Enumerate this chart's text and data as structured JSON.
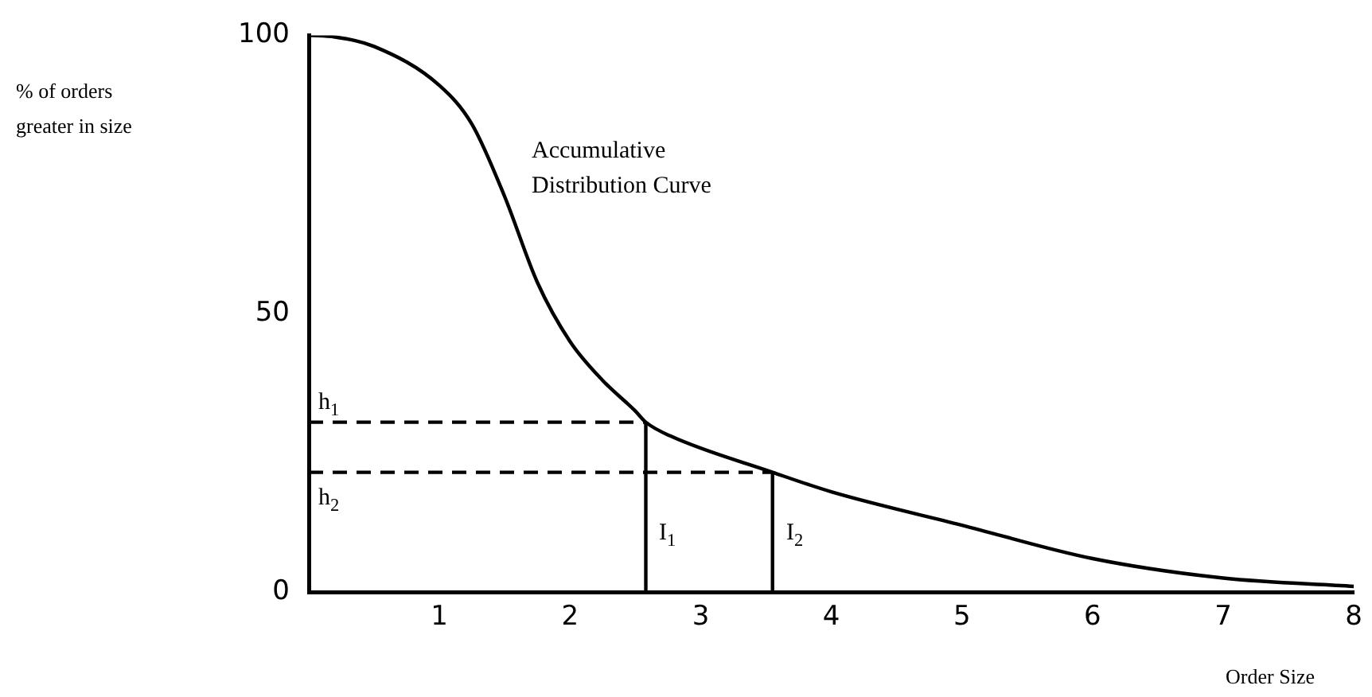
{
  "chart_data": {
    "type": "line",
    "xlabel": "Order Size",
    "xlim": [
      0,
      8
    ],
    "ylim": [
      0,
      100
    ],
    "xticks": [
      1,
      2,
      3,
      4,
      5,
      6,
      7,
      8
    ],
    "yticks": [
      0,
      50,
      100
    ],
    "grid": false,
    "legend": false,
    "marker": "none",
    "series": [
      {
        "color": "#000000",
        "x": [
          0,
          0.2,
          0.5,
          1,
          1.25,
          1.5,
          1.75,
          2,
          2.25,
          2.5,
          2.58,
          2.77,
          3.55,
          4,
          5,
          6,
          7,
          8
        ],
        "values": [
          100,
          99.7,
          98,
          91,
          84,
          71,
          55.6,
          45,
          38,
          32.5,
          30.5,
          28,
          21.5,
          18,
          12,
          6,
          2.5,
          1
        ]
      },
      {
        "color": "#000000",
        "line_style": "dashed",
        "x": [
          0,
          2.58
        ],
        "values": [
          30.5,
          30.5
        ]
      },
      {
        "color": "#000000",
        "line_style": "dashed",
        "x": [
          0,
          3.55
        ],
        "values": [
          21.5,
          21.5
        ]
      },
      {
        "color": "#000000",
        "x": [
          2.58,
          2.58
        ],
        "values": [
          0,
          30.5
        ]
      },
      {
        "color": "#000000",
        "x": [
          3.55,
          3.55
        ],
        "values": [
          0,
          21.5
        ]
      }
    ],
    "annotations": [
      "% of orders greater in size",
      "Accumulative\nDistribution Curve",
      "h$_{1}$",
      "h$_{2}$",
      "I$_{1}$",
      "I$_{2}$"
    ]
  }
}
